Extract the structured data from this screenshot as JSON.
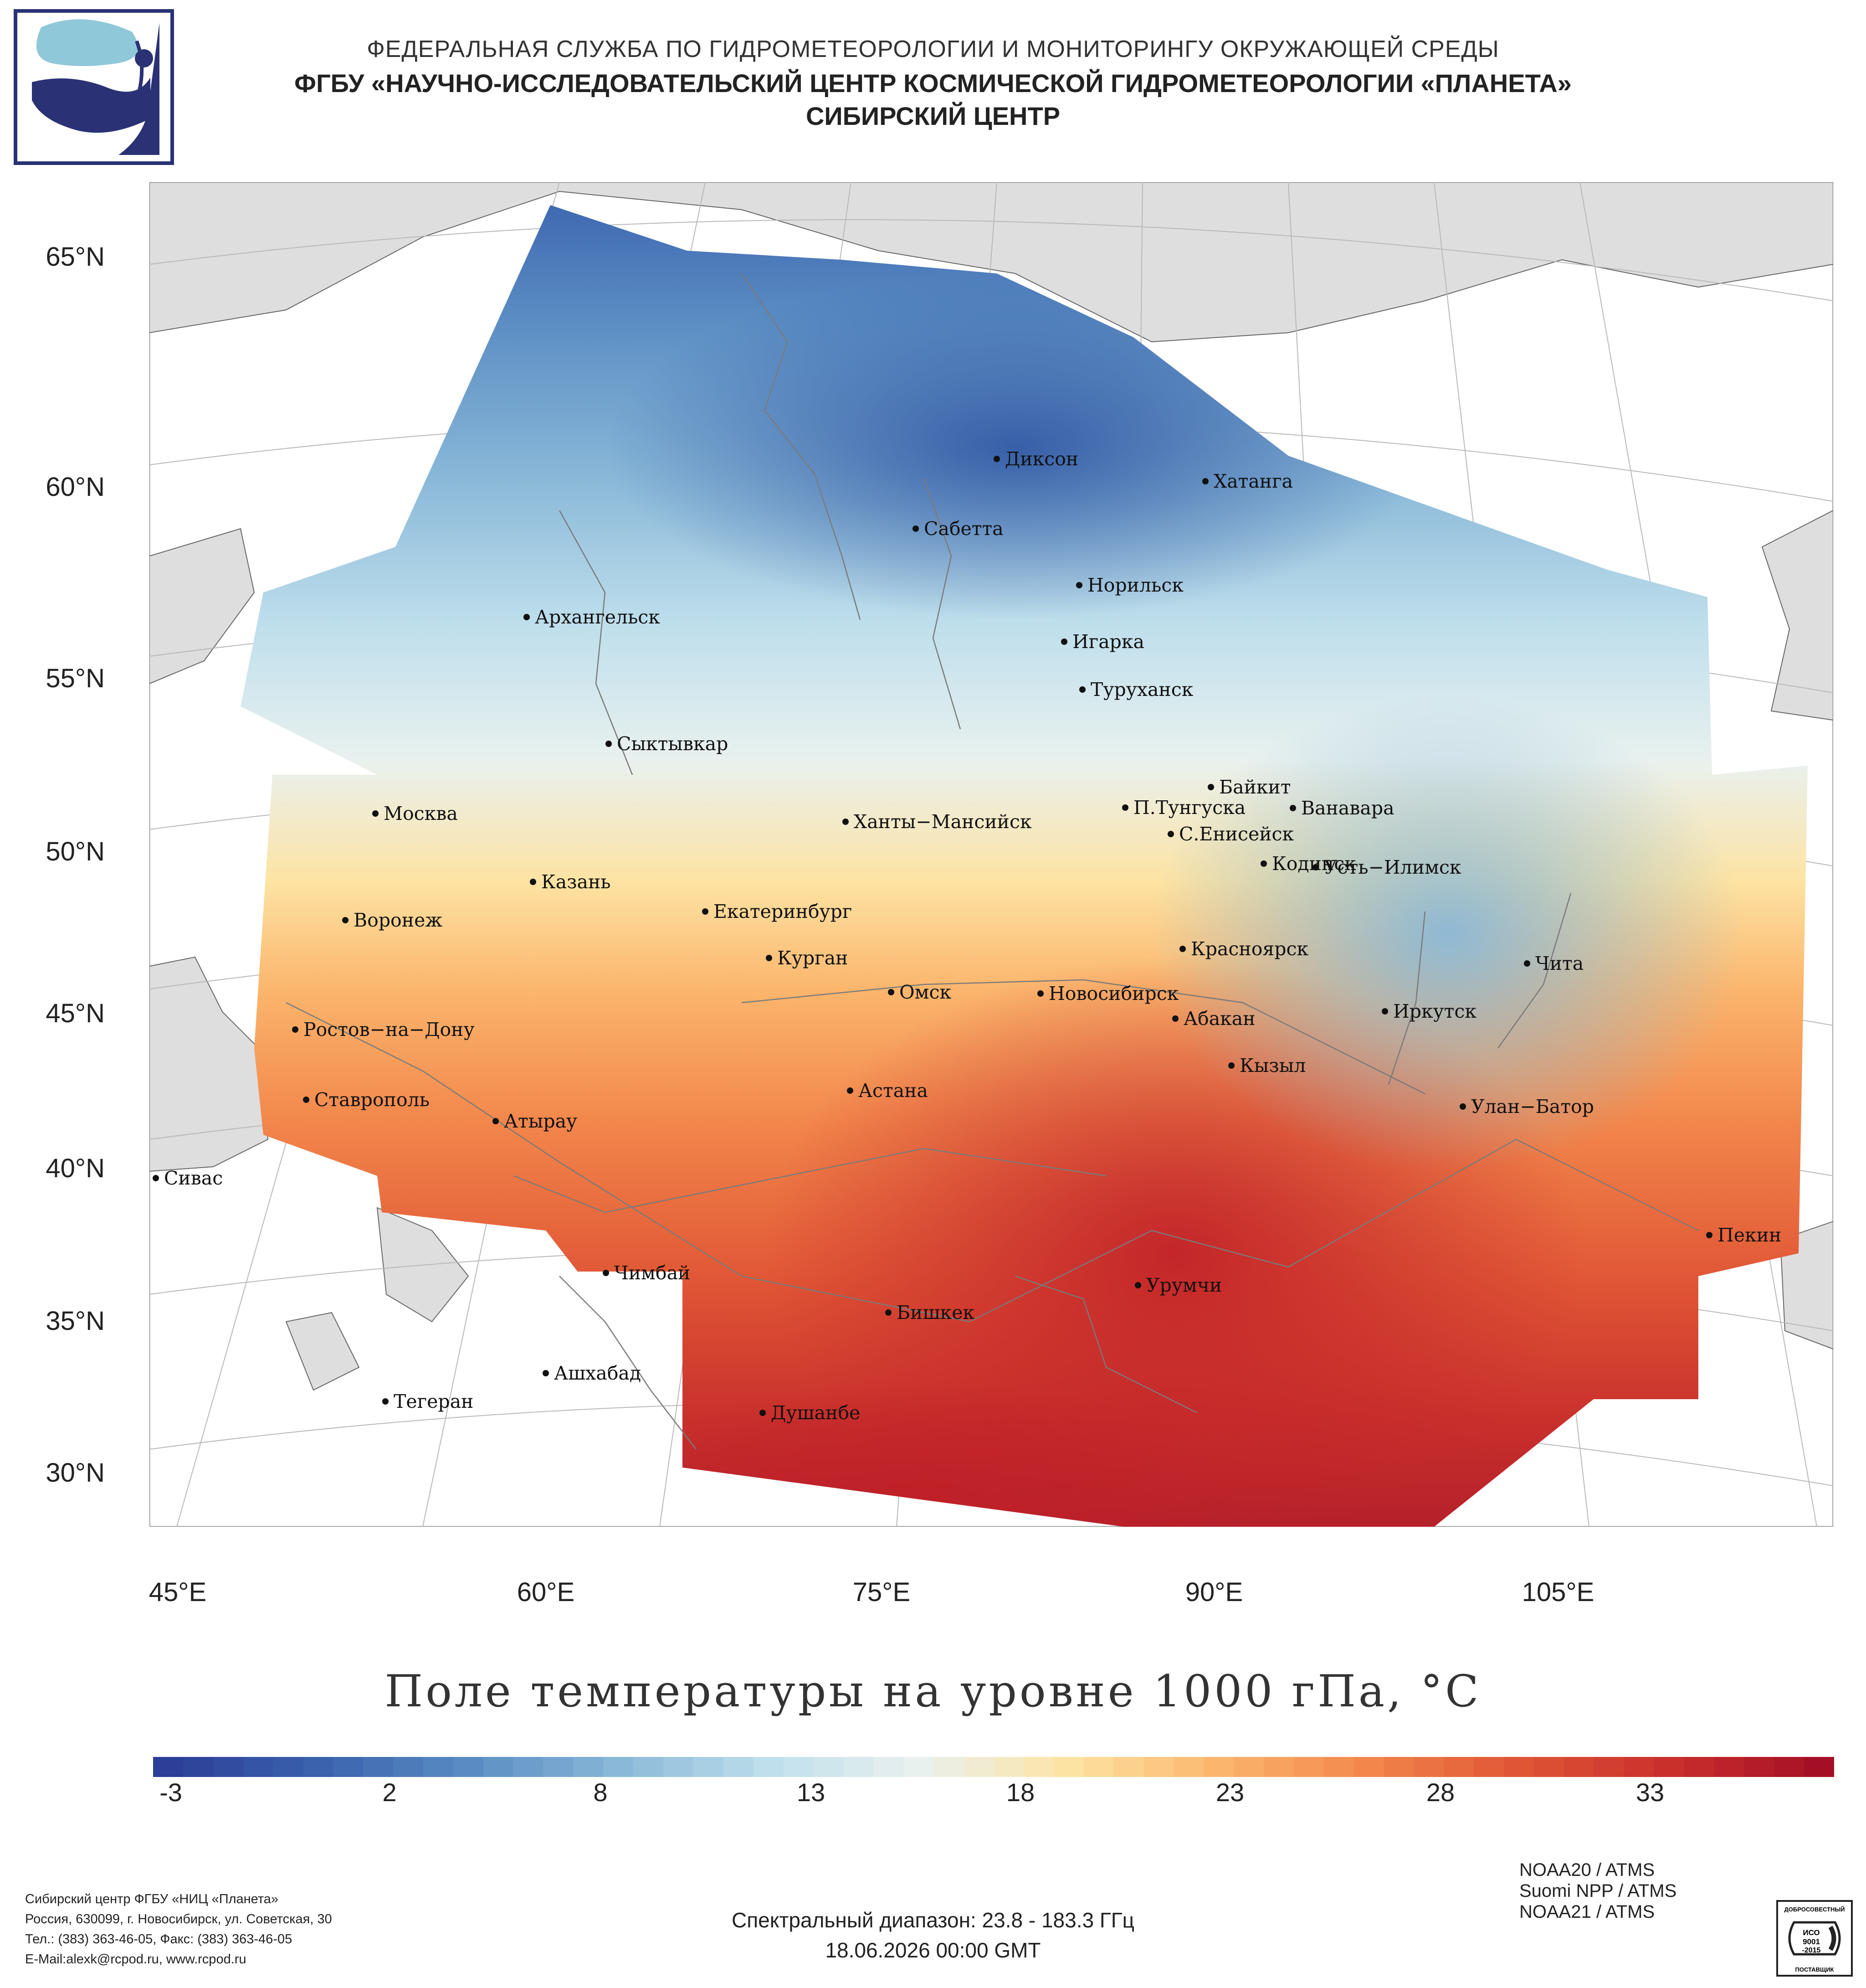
{
  "header": {
    "line1": "ФЕДЕРАЛЬНАЯ СЛУЖБА ПО ГИДРОМЕТЕОРОЛОГИИ И МОНИТОРИНГУ ОКРУЖАЮЩЕЙ СРЕДЫ",
    "line2": "ФГБУ «НАУЧНО-ИССЛЕДОВАТЕЛЬСКИЙ ЦЕНТР КОСМИЧЕСКОЙ ГИДРОМЕТЕОРОЛОГИИ «ПЛАНЕТА»",
    "line3": "СИБИРСКИЙ ЦЕНТР"
  },
  "map": {
    "lat_labels": [
      "65°N",
      "60°N",
      "55°N",
      "50°N",
      "45°N",
      "40°N",
      "35°N",
      "30°N"
    ],
    "lon_labels": [
      "45°E",
      "60°E",
      "75°E",
      "90°E",
      "105°E"
    ],
    "cities": [
      {
        "id": "dikson",
        "name": "Диксон",
        "color": "#111111"
      },
      {
        "id": "khatanga",
        "name": "Хатанга",
        "color": "#111111"
      },
      {
        "id": "sabetta",
        "name": "Сабетта",
        "color": "#111111"
      },
      {
        "id": "norilsk",
        "name": "Норильск",
        "color": "#111111"
      },
      {
        "id": "arkhangelsk",
        "name": "Архангельск",
        "color": "#111111"
      },
      {
        "id": "igarka",
        "name": "Игарка",
        "color": "#111111"
      },
      {
        "id": "turukhansk",
        "name": "Туруханск",
        "color": "#111111"
      },
      {
        "id": "syktyvkar",
        "name": "Сыктывкар",
        "color": "#111111"
      },
      {
        "id": "moskva",
        "name": "Москва",
        "color": "#111111"
      },
      {
        "id": "khanty",
        "name": "Ханты−Мансийск",
        "color": "#111111"
      },
      {
        "id": "baykit",
        "name": "Байкит",
        "color": "#111111"
      },
      {
        "id": "ptunguska",
        "name": "П.Тунгуска",
        "color": "#111111"
      },
      {
        "id": "vanavara",
        "name": "Ванавара",
        "color": "#111111"
      },
      {
        "id": "senisejsk",
        "name": "С.Енисейск",
        "color": "#111111"
      },
      {
        "id": "kazan",
        "name": "Казань",
        "color": "#111111"
      },
      {
        "id": "kodinsk",
        "name": "Кодинск",
        "color": "#111111"
      },
      {
        "id": "ustilimsk",
        "name": "Усть−Илимск",
        "color": "#111111"
      },
      {
        "id": "voronezh",
        "name": "Воронеж",
        "color": "#111111"
      },
      {
        "id": "ekaterinburg",
        "name": "Екатеринбург",
        "color": "#111111"
      },
      {
        "id": "krasnoyarsk",
        "name": "Красноярск",
        "color": "#111111"
      },
      {
        "id": "kurgan",
        "name": "Курган",
        "color": "#111111"
      },
      {
        "id": "chita",
        "name": "Чита",
        "color": "#111111"
      },
      {
        "id": "omsk",
        "name": "Омск",
        "color": "#111111"
      },
      {
        "id": "novosibirsk",
        "name": "Новосибирск",
        "color": "#111111"
      },
      {
        "id": "irkutsk",
        "name": "Иркутск",
        "color": "#111111"
      },
      {
        "id": "abakan",
        "name": "Абакан",
        "color": "#111111"
      },
      {
        "id": "rostov",
        "name": "Ростов−на−Дону",
        "color": "#111111"
      },
      {
        "id": "kyzyl",
        "name": "Кызыл",
        "color": "#111111"
      },
      {
        "id": "astana",
        "name": "Астана",
        "color": "#111111"
      },
      {
        "id": "stavropol",
        "name": "Ставрополь",
        "color": "#111111"
      },
      {
        "id": "ulanbator",
        "name": "Улан−Батор",
        "color": "#111111"
      },
      {
        "id": "atyrau",
        "name": "Атырау",
        "color": "#111111"
      },
      {
        "id": "sivas",
        "name": "Сивас",
        "color": "#111111"
      },
      {
        "id": "pekin",
        "name": "Пекин",
        "color": "#111111"
      },
      {
        "id": "chimbay",
        "name": "Чимбай",
        "color": "#111111"
      },
      {
        "id": "urumchi",
        "name": "Урумчи",
        "color": "#111111"
      },
      {
        "id": "bishkek",
        "name": "Бишкек",
        "color": "#111111"
      },
      {
        "id": "ashkhabad",
        "name": "Ашхабад",
        "color": "#111111"
      },
      {
        "id": "tegeran",
        "name": "Тегеран",
        "color": "#111111"
      },
      {
        "id": "dushanbe",
        "name": "Душанбе",
        "color": "#111111"
      }
    ]
  },
  "title": "Поле температуры на уровне 1000 гПа, °С",
  "colorbar": {
    "ticks": [
      "-3",
      "2",
      "8",
      "13",
      "18",
      "23",
      "28",
      "33"
    ],
    "min": -5.5,
    "max": 37.5,
    "colors": [
      "#2c3e98",
      "#3a62ad",
      "#5a8cc3",
      "#89b8d8",
      "#bfdfec",
      "#e9f1ef",
      "#fde3a3",
      "#fbb66d",
      "#f2864b",
      "#e05535",
      "#c9302c",
      "#a50f25"
    ]
  },
  "footer": {
    "org": "Сибирский центр ФГБУ «НИЦ «Планета»",
    "address": "Россия, 630099, г. Новосибирск, ул. Советская, 30",
    "phone": "Тел.: (383) 363-46-05, Факс: (383) 363-46-05",
    "email": "E-Mail:alexk@rcpod.ru, www.rcpod.ru",
    "spectral": "Спектральный диапазон: 23.8 - 183.3 ГГц",
    "datetime": "18.06.2026 00:00 GMT",
    "satellites": [
      "NOAA20 / ATMS",
      "Suomi NPP / ATMS",
      "NOAA21 / ATMS"
    ],
    "badge_top": "ДОБРОСОВЕСТНЫЙ",
    "badge_mid1": "ИСО",
    "badge_mid2": "9001",
    "badge_mid3": "-2015",
    "badge_bottom": "ПОСТАВЩИК"
  }
}
